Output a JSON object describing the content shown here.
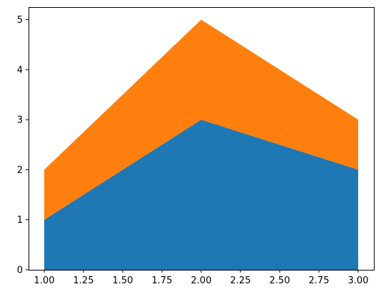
{
  "chart_data": {
    "type": "area",
    "stacked": true,
    "title": "",
    "xlabel": "",
    "ylabel": "",
    "x": [
      1.0,
      2.0,
      3.0
    ],
    "series": [
      {
        "values": [
          1,
          3,
          2
        ],
        "color": "#1f77b4"
      },
      {
        "values": [
          1,
          2,
          1
        ],
        "color": "#ff7f0e"
      }
    ],
    "xlim": [
      0.9,
      3.1
    ],
    "ylim": [
      0,
      5.25
    ],
    "xticks": [
      1.0,
      1.25,
      1.5,
      1.75,
      2.0,
      2.25,
      2.5,
      2.75,
      3.0
    ],
    "xtick_labels": [
      "1.00",
      "1.25",
      "1.50",
      "1.75",
      "2.00",
      "2.25",
      "2.50",
      "2.75",
      "3.00"
    ],
    "yticks": [
      0,
      1,
      2,
      3,
      4,
      5
    ],
    "ytick_labels": [
      "0",
      "1",
      "2",
      "3",
      "4",
      "5"
    ],
    "grid": false,
    "legend": "none"
  }
}
